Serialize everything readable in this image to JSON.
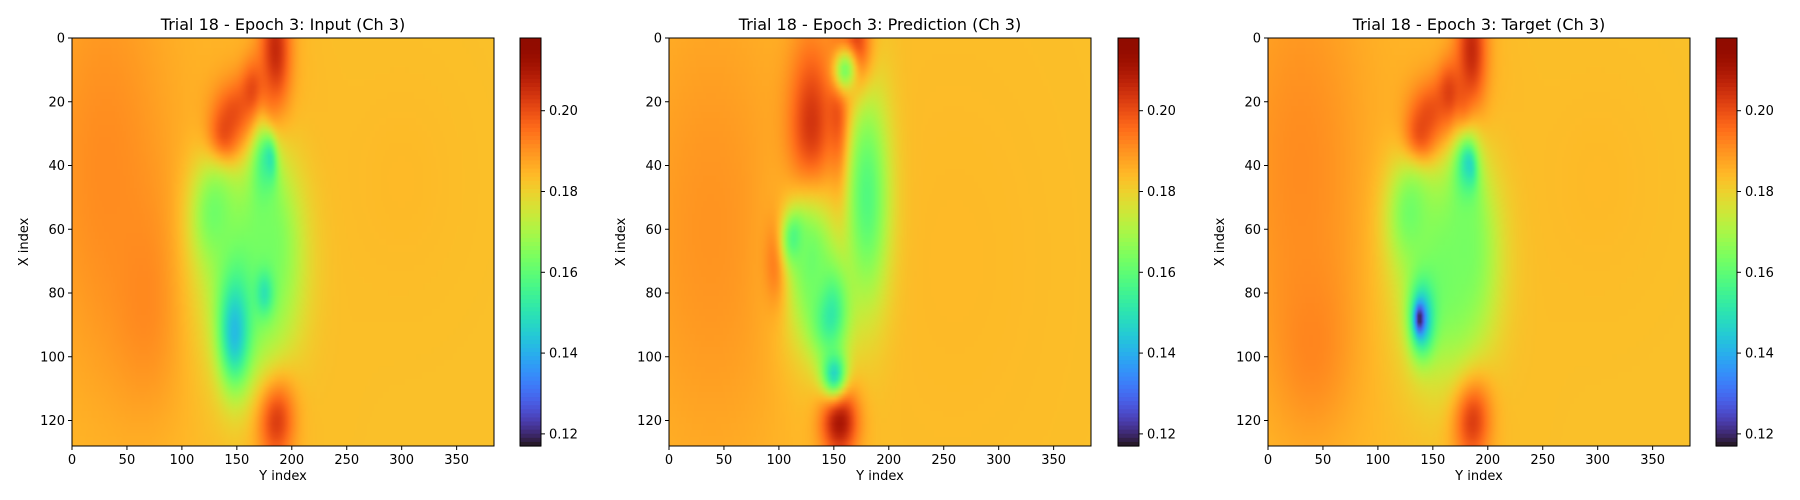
{
  "figure": {
    "background": "#ffffff",
    "colormap": "turbo"
  },
  "chart_data": [
    {
      "type": "heatmap",
      "title": "Trial 18 - Epoch 3: Input (Ch 3)",
      "xlabel": "Y index",
      "ylabel": "X index",
      "xlim": [
        0,
        384
      ],
      "ylim": [
        128,
        0
      ],
      "x_ticks": [
        0,
        50,
        100,
        150,
        200,
        250,
        300,
        350
      ],
      "y_ticks": [
        0,
        20,
        40,
        60,
        80,
        100,
        120
      ],
      "colorbar": {
        "range": [
          0.117,
          0.218
        ],
        "ticks": [
          0.12,
          0.14,
          0.16,
          0.18,
          0.2
        ],
        "tick_labels": [
          "0.12",
          "0.14",
          "0.16",
          "0.18",
          "0.20"
        ]
      },
      "background_value": 0.183,
      "features": [
        {
          "x": 30,
          "y": 40,
          "sx": 50,
          "sy": 55,
          "v": 0.191
        },
        {
          "x": 70,
          "y": 80,
          "sx": 25,
          "sy": 25,
          "v": 0.192
        },
        {
          "x": 160,
          "y": 60,
          "sx": 40,
          "sy": 45,
          "v": 0.188
        },
        {
          "x": 300,
          "y": 45,
          "sx": 40,
          "sy": 25,
          "v": 0.184
        },
        {
          "x": 185,
          "y": 5,
          "sx": 10,
          "sy": 15,
          "v": 0.207
        },
        {
          "x": 150,
          "y": 25,
          "sx": 15,
          "sy": 8,
          "v": 0.205
        },
        {
          "x": 140,
          "y": 33,
          "sx": 10,
          "sy": 6,
          "v": 0.215
        },
        {
          "x": 165,
          "y": 20,
          "sx": 8,
          "sy": 8,
          "v": 0.208
        },
        {
          "x": 178,
          "y": 28,
          "sx": 6,
          "sy": 8,
          "v": 0.212
        },
        {
          "x": 185,
          "y": 118,
          "sx": 12,
          "sy": 10,
          "v": 0.21
        },
        {
          "x": 175,
          "y": 44,
          "sx": 8,
          "sy": 12,
          "v": 0.142
        },
        {
          "x": 180,
          "y": 40,
          "sx": 4,
          "sy": 5,
          "v": 0.132
        },
        {
          "x": 180,
          "y": 65,
          "sx": 20,
          "sy": 20,
          "v": 0.164
        },
        {
          "x": 130,
          "y": 55,
          "sx": 15,
          "sy": 12,
          "v": 0.162
        },
        {
          "x": 160,
          "y": 75,
          "sx": 30,
          "sy": 25,
          "v": 0.163
        },
        {
          "x": 148,
          "y": 92,
          "sx": 10,
          "sy": 12,
          "v": 0.142
        },
        {
          "x": 175,
          "y": 80,
          "sx": 6,
          "sy": 5,
          "v": 0.15
        }
      ]
    },
    {
      "type": "heatmap",
      "title": "Trial 18 - Epoch 3: Prediction (Ch 3)",
      "xlabel": "Y index",
      "ylabel": "X index",
      "xlim": [
        0,
        384
      ],
      "ylim": [
        128,
        0
      ],
      "x_ticks": [
        0,
        50,
        100,
        150,
        200,
        250,
        300,
        350
      ],
      "y_ticks": [
        0,
        20,
        40,
        60,
        80,
        100,
        120
      ],
      "colorbar": {
        "range": [
          0.117,
          0.218
        ],
        "ticks": [
          0.12,
          0.14,
          0.16,
          0.18,
          0.2
        ],
        "tick_labels": [
          "0.12",
          "0.14",
          "0.16",
          "0.18",
          "0.20"
        ]
      },
      "background_value": 0.183,
      "features": [
        {
          "x": 40,
          "y": 60,
          "sx": 60,
          "sy": 60,
          "v": 0.19
        },
        {
          "x": 260,
          "y": 70,
          "sx": 80,
          "sy": 60,
          "v": 0.184
        },
        {
          "x": 170,
          "y": 5,
          "sx": 10,
          "sy": 10,
          "v": 0.212
        },
        {
          "x": 130,
          "y": 40,
          "sx": 15,
          "sy": 25,
          "v": 0.212
        },
        {
          "x": 155,
          "y": 30,
          "sx": 8,
          "sy": 20,
          "v": 0.208
        },
        {
          "x": 100,
          "y": 70,
          "sx": 8,
          "sy": 10,
          "v": 0.205
        },
        {
          "x": 155,
          "y": 120,
          "sx": 12,
          "sy": 8,
          "v": 0.212
        },
        {
          "x": 145,
          "y": 85,
          "sx": 12,
          "sy": 10,
          "v": 0.14
        },
        {
          "x": 150,
          "y": 105,
          "sx": 8,
          "sy": 5,
          "v": 0.145
        },
        {
          "x": 115,
          "y": 63,
          "sx": 8,
          "sy": 6,
          "v": 0.148
        },
        {
          "x": 160,
          "y": 10,
          "sx": 8,
          "sy": 5,
          "v": 0.165
        },
        {
          "x": 180,
          "y": 50,
          "sx": 15,
          "sy": 25,
          "v": 0.158
        },
        {
          "x": 130,
          "y": 70,
          "sx": 20,
          "sy": 20,
          "v": 0.162
        }
      ]
    },
    {
      "type": "heatmap",
      "title": "Trial 18 - Epoch 3: Target (Ch 3)",
      "xlabel": "Y index",
      "ylabel": "X index",
      "xlim": [
        0,
        384
      ],
      "ylim": [
        128,
        0
      ],
      "x_ticks": [
        0,
        50,
        100,
        150,
        200,
        250,
        300,
        350
      ],
      "y_ticks": [
        0,
        20,
        40,
        60,
        80,
        100,
        120
      ],
      "colorbar": {
        "range": [
          0.117,
          0.218
        ],
        "ticks": [
          0.12,
          0.14,
          0.16,
          0.18,
          0.2
        ],
        "tick_labels": [
          "0.12",
          "0.14",
          "0.16",
          "0.18",
          "0.20"
        ]
      },
      "background_value": 0.183,
      "features": [
        {
          "x": 30,
          "y": 40,
          "sx": 50,
          "sy": 55,
          "v": 0.191
        },
        {
          "x": 40,
          "y": 95,
          "sx": 25,
          "sy": 20,
          "v": 0.192
        },
        {
          "x": 160,
          "y": 60,
          "sx": 40,
          "sy": 45,
          "v": 0.188
        },
        {
          "x": 300,
          "y": 45,
          "sx": 40,
          "sy": 25,
          "v": 0.184
        },
        {
          "x": 185,
          "y": 5,
          "sx": 10,
          "sy": 15,
          "v": 0.207
        },
        {
          "x": 150,
          "y": 25,
          "sx": 15,
          "sy": 8,
          "v": 0.205
        },
        {
          "x": 140,
          "y": 33,
          "sx": 10,
          "sy": 6,
          "v": 0.215
        },
        {
          "x": 165,
          "y": 20,
          "sx": 8,
          "sy": 8,
          "v": 0.208
        },
        {
          "x": 178,
          "y": 28,
          "sx": 6,
          "sy": 8,
          "v": 0.212
        },
        {
          "x": 185,
          "y": 118,
          "sx": 12,
          "sy": 10,
          "v": 0.21
        },
        {
          "x": 180,
          "y": 44,
          "sx": 8,
          "sy": 10,
          "v": 0.132
        },
        {
          "x": 183,
          "y": 42,
          "sx": 4,
          "sy": 4,
          "v": 0.12
        },
        {
          "x": 180,
          "y": 65,
          "sx": 20,
          "sy": 20,
          "v": 0.164
        },
        {
          "x": 130,
          "y": 55,
          "sx": 15,
          "sy": 12,
          "v": 0.162
        },
        {
          "x": 160,
          "y": 75,
          "sx": 30,
          "sy": 25,
          "v": 0.163
        },
        {
          "x": 140,
          "y": 88,
          "sx": 8,
          "sy": 8,
          "v": 0.138
        },
        {
          "x": 138,
          "y": 88,
          "sx": 3,
          "sy": 3,
          "v": 0.118
        }
      ]
    }
  ]
}
